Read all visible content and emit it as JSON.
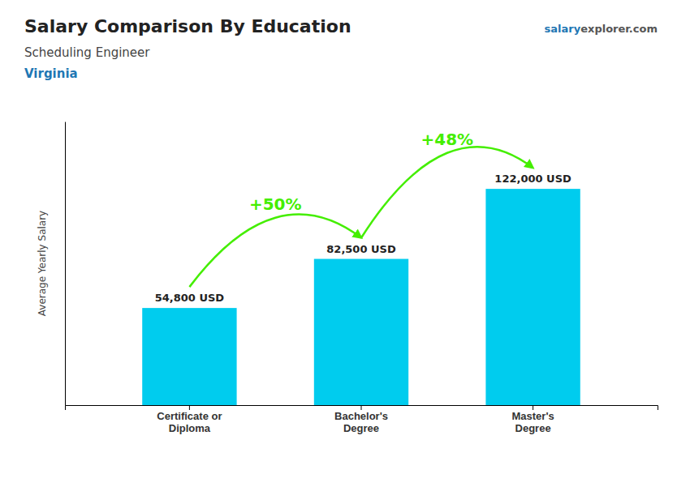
{
  "chart_data": {
    "type": "bar",
    "title": "Salary Comparison By Education",
    "subtitle": "Scheduling Engineer",
    "ylabel": "Average Yearly Salary",
    "categories": [
      "Certificate or\nDiploma",
      "Bachelor's\nDegree",
      "Master's\nDegree"
    ],
    "values": [
      54800,
      82500,
      122000
    ],
    "value_labels": [
      "54,800 USD",
      "82,500 USD",
      "122,000 USD"
    ],
    "data_labels": true,
    "color": "#00ccee",
    "ylim": [
      0,
      160000
    ],
    "tick_labels": false,
    "grid": false,
    "annotations": [
      {
        "text": "Virginia",
        "type": "location"
      },
      {
        "text": "+50%",
        "type": "arrow",
        "color": "#44ee00"
      },
      {
        "text": "+48%",
        "type": "arrow",
        "color": "#44ee00"
      },
      {
        "text": "salary",
        "type": "watermark"
      },
      {
        "text": "explorer.com",
        "type": "watermark"
      }
    ]
  }
}
